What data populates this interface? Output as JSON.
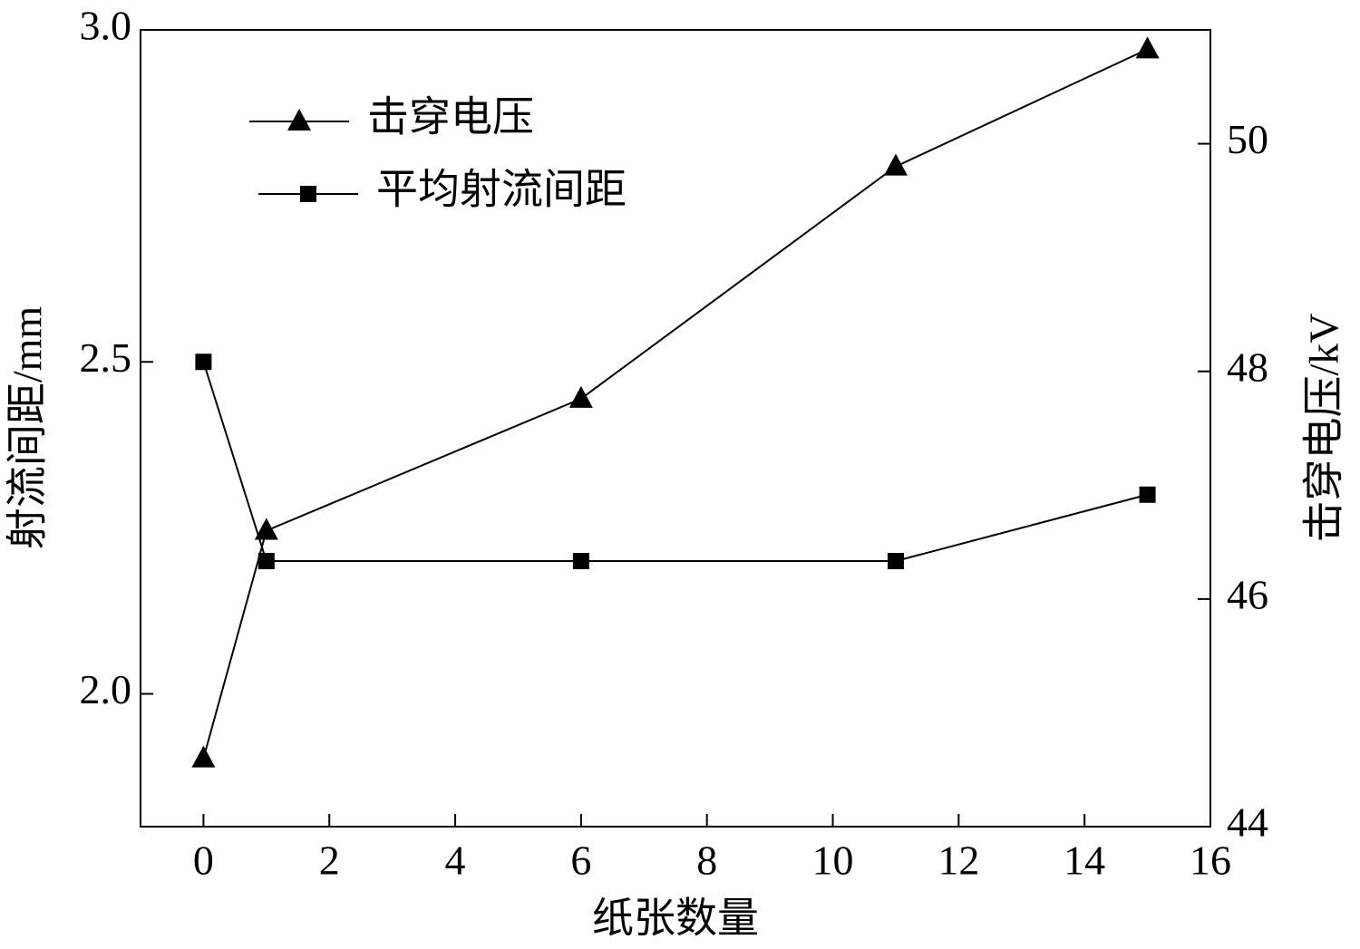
{
  "chart_data": {
    "type": "line",
    "x_label": "纸张数量",
    "y_label": "射流间距/mm",
    "y2_label": "击穿电压/kV",
    "xlim": [
      -1,
      16
    ],
    "xticks": [
      0,
      2,
      4,
      6,
      8,
      10,
      12,
      14,
      16
    ],
    "ylim": [
      1.8,
      3.0
    ],
    "yticks": [
      {
        "value": 2.0,
        "label": "2.0"
      },
      {
        "value": 2.5,
        "label": "2.5"
      },
      {
        "value": 3.0,
        "label": "3.0"
      }
    ],
    "y2lim": [
      44,
      51
    ],
    "y2ticks": [
      44,
      46,
      48,
      50
    ],
    "legend": "upper left",
    "series": [
      {
        "name": "击穿电压",
        "color": "#000000",
        "marker": "triangle",
        "axis": "y2",
        "x": [
          0,
          1,
          6,
          11,
          15
        ],
        "values": [
          44.6,
          46.6,
          47.76,
          49.8,
          50.83
        ]
      },
      {
        "name": "平均射流间距",
        "color": "#000000",
        "marker": "square",
        "x": [
          0,
          1,
          6,
          11,
          15
        ],
        "values": [
          2.5,
          2.2,
          2.2,
          2.2,
          2.3
        ]
      }
    ]
  }
}
